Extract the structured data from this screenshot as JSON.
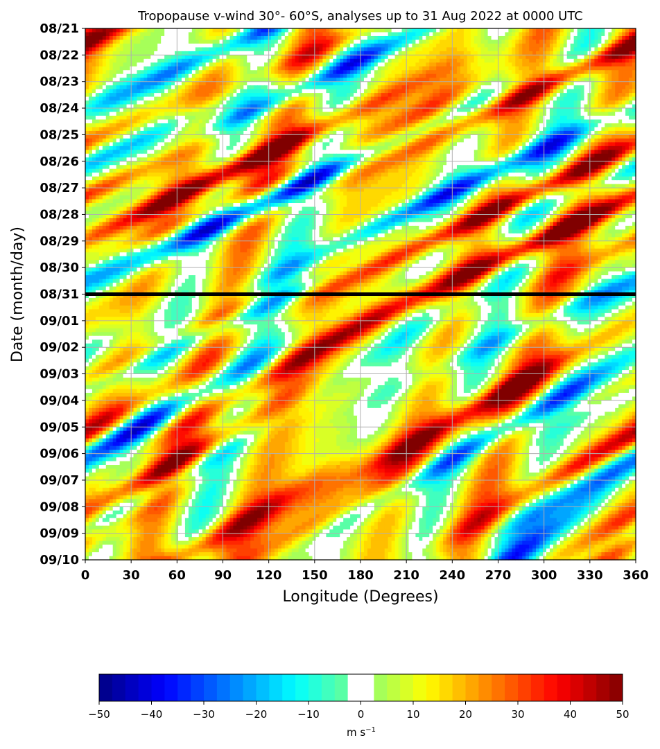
{
  "chart_data": {
    "type": "heatmap",
    "title": "Tropopause v-wind 30°- 60°S, analyses up to 31 Aug 2022 at 0000 UTC",
    "xlabel": "Longitude (Degrees)",
    "ylabel": "Date (month/day)",
    "xlim": [
      0,
      360
    ],
    "x_ticks": [
      "0",
      "30",
      "60",
      "90",
      "120",
      "150",
      "180",
      "210",
      "240",
      "270",
      "300",
      "330",
      "360"
    ],
    "y_ticks": [
      "08/21",
      "08/22",
      "08/23",
      "08/24",
      "08/25",
      "08/26",
      "08/27",
      "08/28",
      "08/29",
      "08/30",
      "08/31",
      "09/01",
      "09/02",
      "09/03",
      "09/04",
      "09/05",
      "09/06",
      "09/07",
      "09/08",
      "09/09",
      "09/10"
    ],
    "analysis_marker": "08/31",
    "grid": true,
    "colorbar": {
      "min": -50,
      "max": 50,
      "ticks": [
        "−50",
        "−40",
        "−30",
        "−20",
        "−10",
        "0",
        "10",
        "20",
        "30",
        "40",
        "50"
      ],
      "unit": "m s",
      "unit_exp": "−1"
    },
    "features": [
      {
        "sign": "neg",
        "lon": 100,
        "day": 0.5,
        "drift": -6,
        "amp": 30
      },
      {
        "sign": "pos",
        "lon": 130,
        "day": 1.5,
        "drift": -6,
        "amp": 38
      },
      {
        "sign": "neg",
        "lon": 150,
        "day": 2.0,
        "drift": -6,
        "amp": 36
      },
      {
        "sign": "pos",
        "lon": 215,
        "day": 3.5,
        "drift": -4,
        "amp": 18
      },
      {
        "sign": "pos",
        "lon": 325,
        "day": 1.5,
        "drift": -6,
        "amp": 36
      },
      {
        "sign": "neg",
        "lon": 60,
        "day": 3.5,
        "drift": -6,
        "amp": 40
      },
      {
        "sign": "pos",
        "lon": 90,
        "day": 5.5,
        "drift": -6,
        "amp": 45
      },
      {
        "sign": "neg",
        "lon": 120,
        "day": 6.5,
        "drift": -6,
        "amp": 45
      },
      {
        "sign": "pos",
        "lon": 40,
        "day": 8.0,
        "drift": -6,
        "amp": 35
      },
      {
        "sign": "neg",
        "lon": 245,
        "day": 6.0,
        "drift": -6,
        "amp": 40
      },
      {
        "sign": "pos",
        "lon": 280,
        "day": 6.5,
        "drift": -6,
        "amp": 40
      },
      {
        "sign": "pos",
        "lon": 315,
        "day": 7.5,
        "drift": -6,
        "amp": 46
      },
      {
        "sign": "neg",
        "lon": 350,
        "day": 9.5,
        "drift": -6,
        "amp": 42
      },
      {
        "sign": "pos",
        "lon": 70,
        "day": 11.5,
        "drift": -6,
        "amp": 35
      },
      {
        "sign": "neg",
        "lon": 75,
        "day": 11.5,
        "drift": -6,
        "amp": 46
      },
      {
        "sign": "pos",
        "lon": 140,
        "day": 12.5,
        "drift": -5,
        "amp": 28
      },
      {
        "sign": "neg",
        "lon": 180,
        "day": 12.5,
        "drift": -5,
        "amp": 22
      },
      {
        "sign": "pos",
        "lon": 250,
        "day": 14.5,
        "drift": -5,
        "amp": 42
      },
      {
        "sign": "neg",
        "lon": 275,
        "day": 15.0,
        "drift": -5,
        "amp": 40
      },
      {
        "sign": "pos",
        "lon": 335,
        "day": 16.0,
        "drift": -5,
        "amp": 32
      },
      {
        "sign": "neg",
        "lon": 20,
        "day": 15.5,
        "drift": -5,
        "amp": 40
      },
      {
        "sign": "pos",
        "lon": 70,
        "day": 16.0,
        "drift": -5,
        "amp": 40
      },
      {
        "sign": "neg",
        "lon": 15,
        "day": 18.5,
        "drift": -5,
        "amp": 38
      },
      {
        "sign": "pos",
        "lon": 75,
        "day": 19.5,
        "drift": -5,
        "amp": 32
      },
      {
        "sign": "pos",
        "lon": 185,
        "day": 17.5,
        "drift": -5,
        "amp": 22
      },
      {
        "sign": "neg",
        "lon": 290,
        "day": 19.5,
        "drift": -4,
        "amp": 32
      },
      {
        "sign": "pos",
        "lon": 350,
        "day": 19.5,
        "drift": -5,
        "amp": 40
      }
    ]
  }
}
